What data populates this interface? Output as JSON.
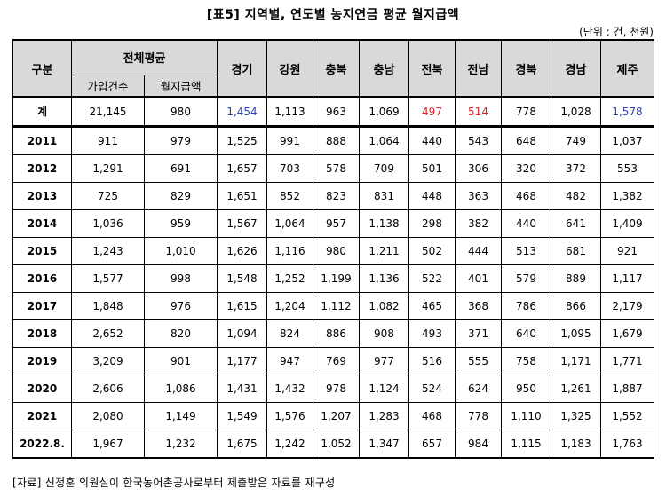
{
  "title": "[표5] 지역별, 연도별 농지연금 평균 월지급액",
  "unit": "(단위 : 건, 천원)",
  "source": "[자료] 신정훈 의원실이 한국농어촌공사로부터 제출받은 자료를 재구성",
  "colors": {
    "header_bg": "#d9d9d9",
    "highlight_blue": "#2e3fb8",
    "highlight_red": "#d62728"
  },
  "chart_data": {
    "type": "table",
    "title": "[표5] 지역별, 연도별 농지연금 평균 월지급액",
    "header": {
      "category": "구분",
      "group": "전체평균",
      "group_columns": [
        "가입건수",
        "월지급액"
      ],
      "regions": [
        "경기",
        "강원",
        "충북",
        "충남",
        "전북",
        "전남",
        "경북",
        "경남",
        "제주"
      ]
    },
    "total_row": {
      "label": "계",
      "values": [
        "21,145",
        "980",
        "1,454",
        "1,113",
        "963",
        "1,069",
        "497",
        "514",
        "778",
        "1,028",
        "1,578"
      ],
      "highlights": [
        "",
        "",
        "blue",
        "",
        "",
        "",
        "red",
        "red",
        "",
        "",
        "blue"
      ]
    },
    "rows": [
      {
        "year": "2011",
        "values": [
          "911",
          "979",
          "1,525",
          "991",
          "888",
          "1,064",
          "440",
          "543",
          "648",
          "749",
          "1,037"
        ]
      },
      {
        "year": "2012",
        "values": [
          "1,291",
          "691",
          "1,657",
          "703",
          "578",
          "709",
          "501",
          "306",
          "320",
          "372",
          "553"
        ]
      },
      {
        "year": "2013",
        "values": [
          "725",
          "829",
          "1,651",
          "852",
          "823",
          "831",
          "448",
          "363",
          "468",
          "482",
          "1,382"
        ]
      },
      {
        "year": "2014",
        "values": [
          "1,036",
          "959",
          "1,567",
          "1,064",
          "957",
          "1,138",
          "298",
          "382",
          "440",
          "641",
          "1,409"
        ]
      },
      {
        "year": "2015",
        "values": [
          "1,243",
          "1,010",
          "1,626",
          "1,116",
          "980",
          "1,211",
          "502",
          "444",
          "513",
          "681",
          "921"
        ]
      },
      {
        "year": "2016",
        "values": [
          "1,577",
          "998",
          "1,548",
          "1,252",
          "1,199",
          "1,136",
          "522",
          "401",
          "579",
          "889",
          "1,117"
        ]
      },
      {
        "year": "2017",
        "values": [
          "1,848",
          "976",
          "1,615",
          "1,204",
          "1,112",
          "1,082",
          "465",
          "368",
          "786",
          "866",
          "2,179"
        ]
      },
      {
        "year": "2018",
        "values": [
          "2,652",
          "820",
          "1,094",
          "824",
          "886",
          "908",
          "493",
          "371",
          "640",
          "1,095",
          "1,679"
        ]
      },
      {
        "year": "2019",
        "values": [
          "3,209",
          "901",
          "1,177",
          "947",
          "769",
          "977",
          "516",
          "555",
          "758",
          "1,171",
          "1,771"
        ]
      },
      {
        "year": "2020",
        "values": [
          "2,606",
          "1,086",
          "1,431",
          "1,432",
          "978",
          "1,124",
          "524",
          "624",
          "950",
          "1,261",
          "1,887"
        ]
      },
      {
        "year": "2021",
        "values": [
          "2,080",
          "1,149",
          "1,549",
          "1,576",
          "1,207",
          "1,283",
          "468",
          "778",
          "1,110",
          "1,325",
          "1,552"
        ]
      },
      {
        "year": "2022.8.",
        "values": [
          "1,967",
          "1,232",
          "1,675",
          "1,242",
          "1,052",
          "1,347",
          "657",
          "984",
          "1,115",
          "1,183",
          "1,763"
        ]
      }
    ]
  }
}
